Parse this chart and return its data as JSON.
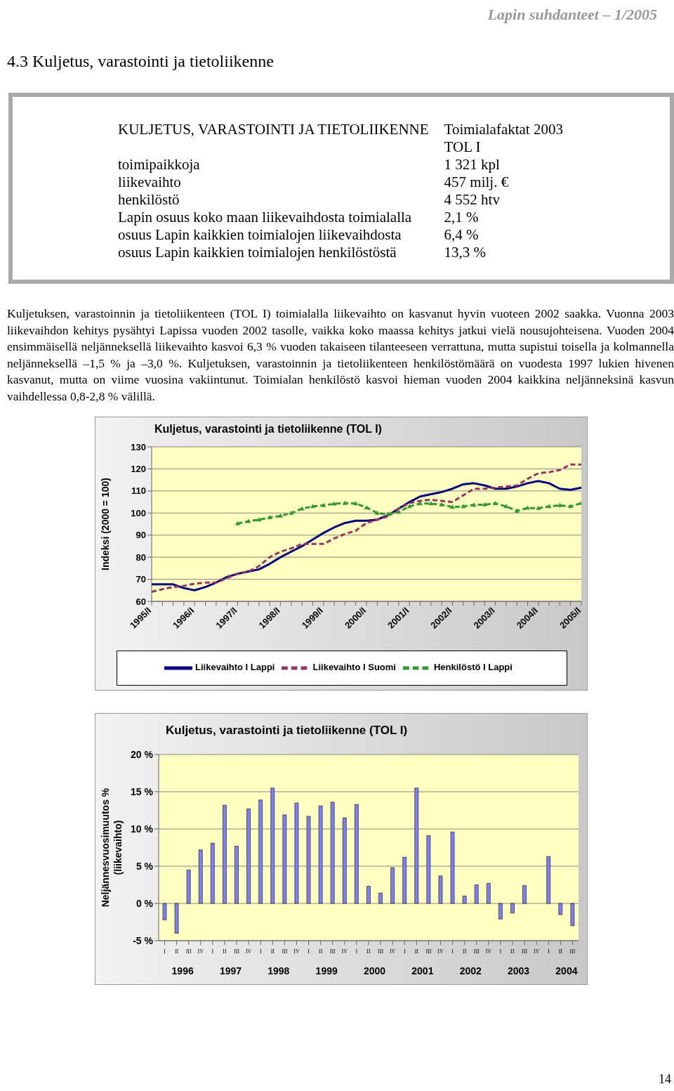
{
  "chart_data": [
    {
      "type": "other",
      "title": "4.3 Kuljetus, varastointi ja tietoliikenne",
      "annotations": [
        "Lapin suhdanteet – 1/2005",
        "KULJETUS, VARASTOINTI JA TIETOLIIKENNE",
        "Toimialafaktat 2003\nTOL I",
        "toimipaikkoja",
        "1 321 kpl",
        "liikevaihto",
        "457 milj. €",
        "henkilöstö",
        "4 552 htv",
        "Lapin osuus koko maan liikevaihdosta toimialalla",
        "2,1 %",
        "osuus Lapin kaikkien toimialojen liikevaihdosta",
        "6,4 %",
        "osuus Lapin kaikkien toimialojen henkilöstöstä",
        "13,3 %",
        "Kuljetuksen, varastoinnin ja tietoliikenteen (TOL I) toimialalla liikevaihto on kasvanut hyvin vuoteen 2002 saakka. Vuonna 2003 liikevaihdon kehitys pysähtyi Lapissa vuoden 2002 tasolle, vaikka koko maassa kehitys jatkui vielä nousujohteisena. Vuoden 2004 ensimmäisellä neljänneksellä liikevaihto kasvoi 6,3 % vuoden takaiseen tilanteeseen verrattuna, mutta supistui toisella ja kolmannella neljänneksellä –1,5 % ja –3,0 %. Kuljetuksen, varastoinnin ja tietoliikenteen henkilöstömäärä on vuodesta 1997 lukien hivenen kasvanut, mutta on viime vuosina vakiintunut. Toimialan henkilöstö kasvoi hieman vuoden 2004 kaikkina neljänneksinä kasvun vaihdellessa 0,8-2,8 % välillä.",
        "14"
      ]
    },
    {
      "type": "line",
      "title": "Kuljetus, varastointi ja tietoliikenne (TOL I)",
      "ylabel": "Indeksi (2000 = 100)",
      "categories": [
        "1995/I",
        null,
        null,
        null,
        "1996/I",
        null,
        null,
        null,
        "1997/I",
        null,
        null,
        null,
        "1998/I",
        null,
        null,
        null,
        "1999/I",
        null,
        null,
        null,
        "2000/I",
        null,
        null,
        null,
        "2001/I",
        null,
        null,
        null,
        "2002/I",
        null,
        null,
        null,
        "2003/I",
        null,
        null,
        null,
        "2004/I",
        null,
        null,
        null,
        "2005/I"
      ],
      "series": [
        {
          "name": "Liikevaihto I Lappi",
          "color": "#000080",
          "line_style": "solid",
          "marker": "none",
          "values": [
            67.7,
            67.7,
            67.7,
            66,
            65,
            66.5,
            68.5,
            71,
            72.5,
            73.5,
            74.5,
            77,
            80,
            82.5,
            85,
            88,
            91,
            93.5,
            95.5,
            96.5,
            96.5,
            97,
            99,
            102,
            105,
            107.5,
            108.5,
            109.5,
            111,
            113,
            113.5,
            112.5,
            111,
            111,
            112,
            113.5,
            114.5,
            113.5,
            111,
            110.5,
            111.5
          ]
        },
        {
          "name": "Liikevaihto I Suomi",
          "color": "#993366",
          "line_style": "dashed",
          "marker": "none",
          "values": [
            64.3,
            65.5,
            66.5,
            67,
            68,
            68.5,
            68.5,
            70.5,
            72.5,
            73.5,
            76,
            80,
            82.5,
            84,
            86,
            86,
            86,
            88.5,
            90.5,
            92,
            95.5,
            97,
            98.5,
            102,
            104.5,
            105.5,
            106,
            105.5,
            105,
            108,
            111,
            111,
            111.5,
            112,
            112.5,
            115.5,
            118,
            118.5,
            119.5,
            122,
            122
          ]
        },
        {
          "name": "Henkilöstö I Lappi",
          "color": "#339933",
          "line_style": "dashed",
          "marker": "triangle",
          "values": [
            null,
            null,
            null,
            null,
            null,
            null,
            null,
            null,
            95.2,
            96.3,
            97,
            98,
            98.7,
            100,
            102,
            103,
            103.5,
            104.2,
            104.5,
            104.3,
            102.5,
            100,
            99.5,
            100.5,
            103,
            104.3,
            104.3,
            103.8,
            102.7,
            103,
            103.7,
            103.8,
            104.4,
            103,
            101,
            102.3,
            102.2,
            103,
            103.5,
            103,
            104.5
          ]
        }
      ],
      "ylim": [
        60,
        130
      ],
      "yticks": [
        60,
        70,
        80,
        90,
        100,
        110,
        120,
        130
      ],
      "grid": "y",
      "legend": "bottom"
    },
    {
      "type": "bar",
      "title": "Kuljetus, varastointi ja tietoliikenne (TOL I)",
      "ylabel": "Neljännesvuosimuutos %\n(liikevaihto)",
      "categories": [
        "I",
        "II",
        "III",
        "IV",
        "I",
        "II",
        "III",
        "IV",
        "I",
        "II",
        "III",
        "IV",
        "I",
        "II",
        "III",
        "IV",
        "I",
        "II",
        "III",
        "IV",
        "I",
        "II",
        "III",
        "IV",
        "I",
        "II",
        "III",
        "IV",
        "I",
        "II",
        "III",
        "IV",
        "I",
        "II",
        "III"
      ],
      "values": [
        -2.2,
        -4.0,
        4.5,
        7.2,
        8.1,
        13.2,
        7.7,
        12.7,
        13.9,
        15.5,
        11.9,
        13.5,
        11.7,
        13.1,
        13.6,
        11.5,
        13.3,
        2.3,
        1.4,
        4.8,
        6.2,
        15.5,
        9.1,
        3.7,
        9.6,
        1.0,
        2.5,
        2.7,
        -2.1,
        -1.3,
        2.4,
        0,
        6.3,
        -1.5,
        -3.0
      ],
      "color": "#8080ff",
      "annotations": [
        "1996",
        "1997",
        "1998",
        "1999",
        "2000",
        "2001",
        "2002",
        "2003",
        "2004"
      ],
      "ylim": [
        -5,
        20
      ],
      "yticks": [
        {
          "value": -5,
          "label": "-5 %"
        },
        {
          "value": 0,
          "label": "0 %"
        },
        {
          "value": 5,
          "label": "5 %"
        },
        {
          "value": 10,
          "label": "10 %"
        },
        {
          "value": 15,
          "label": "15 %"
        },
        {
          "value": 20,
          "label": "20 %"
        }
      ],
      "grid": "y"
    }
  ]
}
